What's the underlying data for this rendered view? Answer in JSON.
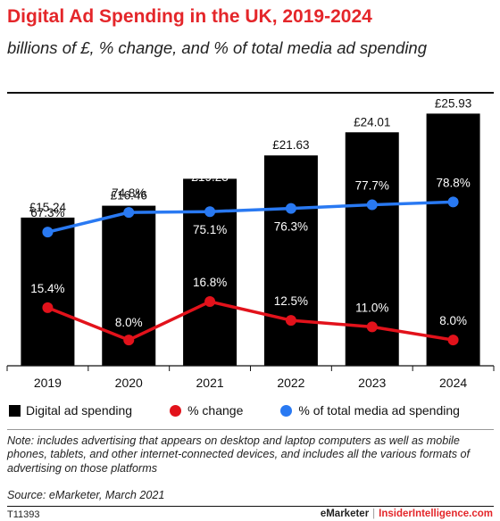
{
  "header": {
    "title": "Digital Ad Spending in the UK, 2019-2024",
    "subtitle": "billions of £, % change, and % of total media ad spending"
  },
  "chart_data": {
    "type": "bar",
    "categories": [
      "2019",
      "2020",
      "2021",
      "2022",
      "2023",
      "2024"
    ],
    "series": [
      {
        "name": "Digital ad spending",
        "type": "bar",
        "values": [
          15.24,
          16.46,
          19.23,
          21.63,
          24.01,
          25.93
        ],
        "labels": [
          "£15.24",
          "£16.46",
          "£19.23",
          "£21.63",
          "£24.01",
          "£25.93"
        ],
        "color": "#000000"
      },
      {
        "name": "% change",
        "type": "line",
        "values": [
          15.4,
          8.0,
          16.8,
          12.5,
          11.0,
          8.0
        ],
        "labels": [
          "15.4%",
          "8.0%",
          "16.8%",
          "12.5%",
          "11.0%",
          "8.0%"
        ],
        "color": "#e2121b"
      },
      {
        "name": "% of total media ad spending",
        "type": "line",
        "values": [
          67.3,
          74.8,
          75.1,
          76.3,
          77.7,
          78.8
        ],
        "labels": [
          "67.3%",
          "74.8%",
          "75.1%",
          "76.3%",
          "77.7%",
          "78.8%"
        ],
        "color": "#2979f2"
      }
    ],
    "grid": false,
    "legend_position": "bottom"
  },
  "legend": {
    "items": [
      {
        "label": "Digital ad spending",
        "color": "#000000",
        "shape": "square"
      },
      {
        "label": "% change",
        "color": "#e2121b",
        "shape": "circle"
      },
      {
        "label": "% of total media ad spending",
        "color": "#2979f2",
        "shape": "circle"
      }
    ]
  },
  "footer": {
    "note": "Note: includes advertising that appears on desktop and laptop computers as well as mobile phones, tablets, and other internet-connected devices, and includes all the various formats of advertising on those platforms",
    "source": "Source: eMarketer, March 2021",
    "chart_id": "T11393",
    "brand_left": "eMarketer",
    "brand_sep": "|",
    "brand_right": "InsiderIntelligence.com"
  }
}
